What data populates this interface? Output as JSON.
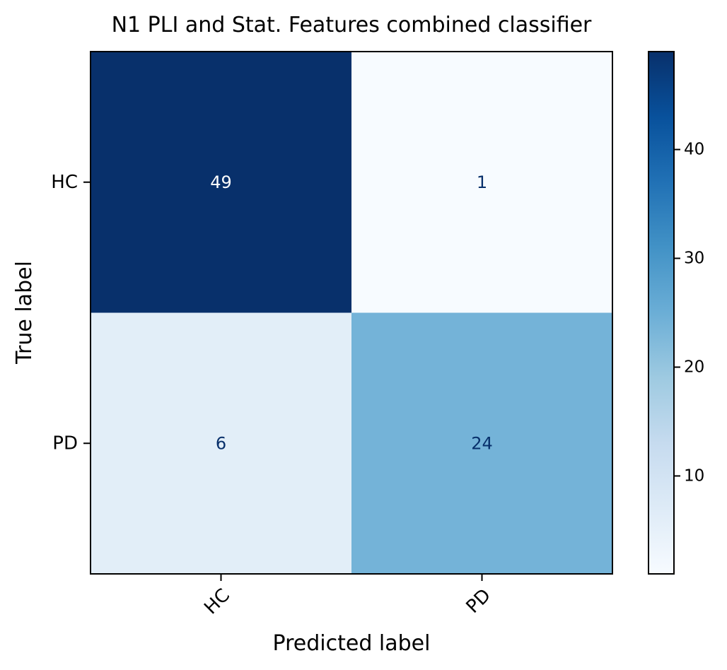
{
  "chart_data": {
    "type": "heatmap",
    "title": "N1 PLI and Stat. Features combined classifier",
    "xlabel": "Predicted label",
    "ylabel": "True label",
    "x_categories": [
      "HC",
      "PD"
    ],
    "y_categories": [
      "HC",
      "PD"
    ],
    "matrix": [
      [
        49,
        1
      ],
      [
        6,
        24
      ]
    ],
    "colormap": "Blues",
    "colorbar": {
      "min": 1,
      "max": 49,
      "ticks": [
        10,
        20,
        30,
        40
      ]
    },
    "text_colors": {
      "dark_bg": "#ffffff",
      "light_bg": "#08306b"
    },
    "grid": false
  }
}
